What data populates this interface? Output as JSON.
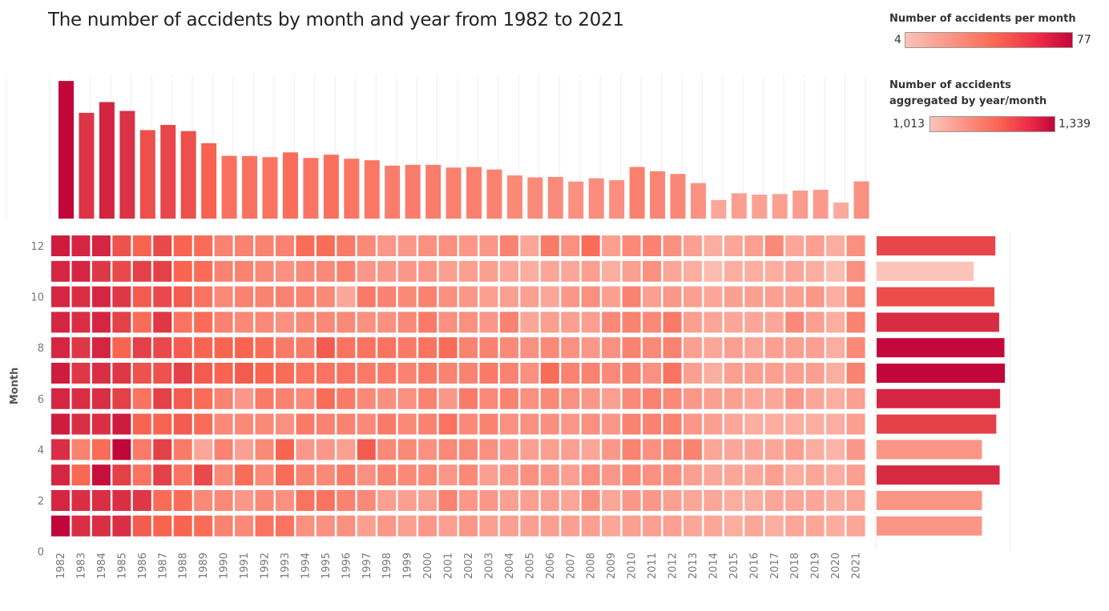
{
  "title": "The number of accidents by month and year from 1982 to 2021",
  "legends": {
    "per_month": {
      "title": "Number of accidents per month",
      "min": "4",
      "max": "77"
    },
    "aggregated": {
      "title_line1": "Number of accidents",
      "title_line2": "aggregated by year/month",
      "min": "1,013",
      "max": "1,339"
    }
  },
  "colors": {
    "low": "#fcc3b8",
    "mid": "#f96551",
    "high": "#c1063a",
    "grid": "#eeeeee"
  },
  "chart_data": {
    "type": "heatmap",
    "title": "The number of accidents by month and year from 1982 to 2021",
    "ylabel": "Month",
    "years": [
      "1982",
      "1983",
      "1984",
      "1985",
      "1986",
      "1987",
      "1988",
      "1989",
      "1990",
      "1991",
      "1992",
      "1993",
      "1994",
      "1995",
      "1996",
      "1997",
      "1998",
      "1999",
      "2000",
      "2001",
      "2002",
      "2003",
      "2004",
      "2005",
      "2006",
      "2007",
      "2008",
      "2009",
      "2010",
      "2011",
      "2012",
      "2013",
      "2014",
      "2015",
      "2016",
      "2017",
      "2018",
      "2019",
      "2020",
      "2021"
    ],
    "month_ticks": [
      "0",
      "2",
      "4",
      "6",
      "8",
      "10",
      "12"
    ],
    "year_totals": [
      717,
      551,
      607,
      561,
      461,
      488,
      456,
      393,
      327,
      326,
      320,
      345,
      316,
      333,
      312,
      304,
      276,
      280,
      280,
      266,
      269,
      256,
      225,
      215,
      217,
      193,
      210,
      200,
      269,
      247,
      233,
      185,
      97,
      132,
      125,
      128,
      146,
      150,
      84,
      194
    ],
    "month_totals": {
      "1": 1100,
      "2": 1100,
      "3": 1285,
      "4": 1100,
      "5": 1250,
      "6": 1290,
      "7": 1339,
      "8": 1335,
      "9": 1280,
      "10": 1230,
      "11": 1013,
      "12": 1240
    },
    "heatmap_values": {
      "1982": [
        77,
        70,
        70,
        68,
        72,
        70,
        72,
        70,
        70,
        70,
        70,
        72
      ],
      "1983": [
        68,
        68,
        55,
        48,
        68,
        68,
        66,
        66,
        68,
        68,
        70,
        70
      ],
      "1984": [
        68,
        68,
        75,
        54,
        68,
        68,
        68,
        70,
        70,
        70,
        66,
        70
      ],
      "1985": [
        68,
        68,
        64,
        77,
        72,
        64,
        66,
        56,
        64,
        66,
        62,
        60
      ],
      "1986": [
        58,
        66,
        52,
        50,
        56,
        52,
        60,
        64,
        54,
        58,
        64,
        56
      ],
      "1987": [
        56,
        54,
        64,
        64,
        56,
        64,
        60,
        62,
        66,
        62,
        64,
        62
      ],
      "1988": [
        56,
        54,
        52,
        50,
        58,
        58,
        64,
        58,
        52,
        58,
        56,
        56
      ],
      "1989": [
        54,
        46,
        62,
        38,
        54,
        54,
        58,
        56,
        54,
        52,
        54,
        54
      ],
      "1990": [
        48,
        46,
        46,
        48,
        46,
        48,
        56,
        56,
        48,
        46,
        48,
        48
      ],
      "1991": [
        46,
        42,
        54,
        40,
        46,
        42,
        58,
        56,
        46,
        48,
        48,
        48
      ],
      "1992": [
        52,
        46,
        46,
        46,
        46,
        50,
        56,
        54,
        46,
        48,
        46,
        48
      ],
      "1993": [
        52,
        44,
        54,
        56,
        44,
        48,
        54,
        50,
        44,
        48,
        44,
        48
      ],
      "1994": [
        44,
        52,
        48,
        42,
        50,
        46,
        52,
        50,
        46,
        48,
        46,
        54
      ],
      "1995": [
        44,
        52,
        46,
        42,
        48,
        54,
        52,
        58,
        46,
        46,
        46,
        54
      ],
      "1996": [
        44,
        48,
        50,
        40,
        48,
        50,
        52,
        52,
        46,
        38,
        48,
        50
      ],
      "1997": [
        40,
        46,
        44,
        58,
        46,
        46,
        50,
        52,
        44,
        50,
        42,
        46
      ],
      "1998": [
        42,
        40,
        48,
        46,
        50,
        44,
        50,
        52,
        44,
        48,
        42,
        42
      ],
      "1999": [
        40,
        40,
        46,
        46,
        46,
        44,
        48,
        50,
        46,
        46,
        42,
        42
      ],
      "2000": [
        42,
        40,
        46,
        44,
        48,
        48,
        50,
        52,
        50,
        48,
        42,
        44
      ],
      "2001": [
        40,
        48,
        42,
        46,
        52,
        42,
        48,
        54,
        44,
        44,
        40,
        44
      ],
      "2002": [
        42,
        42,
        46,
        46,
        46,
        50,
        48,
        48,
        44,
        42,
        40,
        42
      ],
      "2003": [
        40,
        42,
        40,
        44,
        48,
        46,
        50,
        48,
        42,
        40,
        40,
        42
      ],
      "2004": [
        40,
        40,
        42,
        42,
        44,
        48,
        48,
        46,
        48,
        40,
        38,
        48
      ],
      "2005": [
        40,
        40,
        44,
        40,
        44,
        44,
        44,
        44,
        38,
        40,
        36,
        38
      ],
      "2006": [
        40,
        40,
        42,
        40,
        44,
        46,
        54,
        46,
        40,
        38,
        38,
        50
      ],
      "2007": [
        40,
        38,
        40,
        40,
        42,
        44,
        48,
        44,
        40,
        42,
        38,
        44
      ],
      "2008": [
        40,
        44,
        44,
        38,
        44,
        42,
        48,
        42,
        40,
        44,
        40,
        54
      ],
      "2009": [
        38,
        38,
        42,
        42,
        42,
        40,
        46,
        44,
        46,
        40,
        36,
        40
      ],
      "2010": [
        40,
        42,
        46,
        48,
        48,
        46,
        48,
        48,
        48,
        48,
        40,
        46
      ],
      "2011": [
        40,
        42,
        44,
        44,
        48,
        48,
        44,
        46,
        46,
        40,
        44,
        48
      ],
      "2012": [
        40,
        40,
        44,
        46,
        48,
        46,
        52,
        48,
        50,
        42,
        38,
        44
      ],
      "2013": [
        38,
        38,
        40,
        48,
        42,
        42,
        40,
        40,
        40,
        40,
        36,
        40
      ],
      "2014": [
        38,
        38,
        38,
        38,
        40,
        40,
        36,
        38,
        38,
        38,
        32,
        36
      ],
      "2015": [
        36,
        36,
        38,
        38,
        38,
        40,
        40,
        40,
        38,
        40,
        36,
        38
      ],
      "2016": [
        38,
        36,
        38,
        38,
        36,
        38,
        40,
        38,
        38,
        40,
        36,
        40
      ],
      "2017": [
        36,
        38,
        40,
        38,
        36,
        38,
        40,
        40,
        38,
        40,
        36,
        46
      ],
      "2018": [
        38,
        38,
        36,
        40,
        36,
        42,
        40,
        40,
        46,
        40,
        38,
        38
      ],
      "2019": [
        38,
        38,
        38,
        36,
        36,
        38,
        40,
        40,
        40,
        42,
        36,
        40
      ],
      "2020": [
        36,
        36,
        36,
        34,
        36,
        36,
        36,
        36,
        36,
        36,
        32,
        36
      ],
      "2021": [
        38,
        38,
        40,
        42,
        40,
        40,
        48,
        46,
        48,
        46,
        44,
        44
      ]
    },
    "value_range": [
      4,
      77
    ],
    "aggregate_range": [
      1013,
      1339
    ]
  }
}
